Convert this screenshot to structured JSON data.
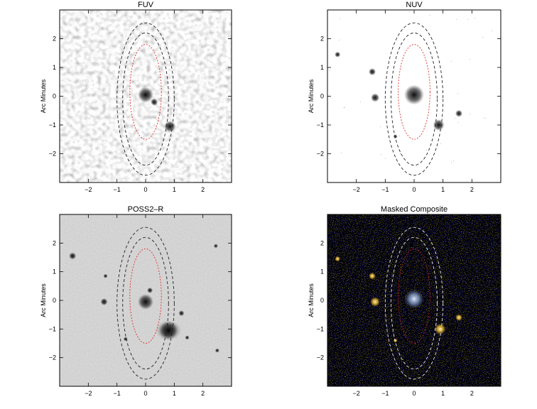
{
  "panels": [
    {
      "key": "fuv",
      "title": "FUV",
      "ylabel": "Arc Minutes",
      "theme": "fuv"
    },
    {
      "key": "nuv",
      "title": "NUV",
      "ylabel": "Arc Minutes",
      "theme": "nuv"
    },
    {
      "key": "poss",
      "title": "POSS2–R",
      "ylabel": "Arc Minutes",
      "theme": "poss"
    },
    {
      "key": "comp",
      "title": "Masked Composite",
      "ylabel": "Arc Minutes",
      "theme": "comp"
    }
  ],
  "axis": {
    "xlim": [
      -3,
      3
    ],
    "ylim": [
      -3,
      3
    ],
    "ticks": [
      -2,
      -1,
      0,
      1,
      2
    ],
    "tick_labels": [
      "−2",
      "−1",
      "0",
      "1",
      "2"
    ]
  },
  "colors": {
    "inner_ellipse": "#e03030",
    "outer_ellipse": "#222222",
    "comp_outer_ellipse": "#e8e8e8",
    "comp_inner_ellipse": "#c02020"
  }
}
